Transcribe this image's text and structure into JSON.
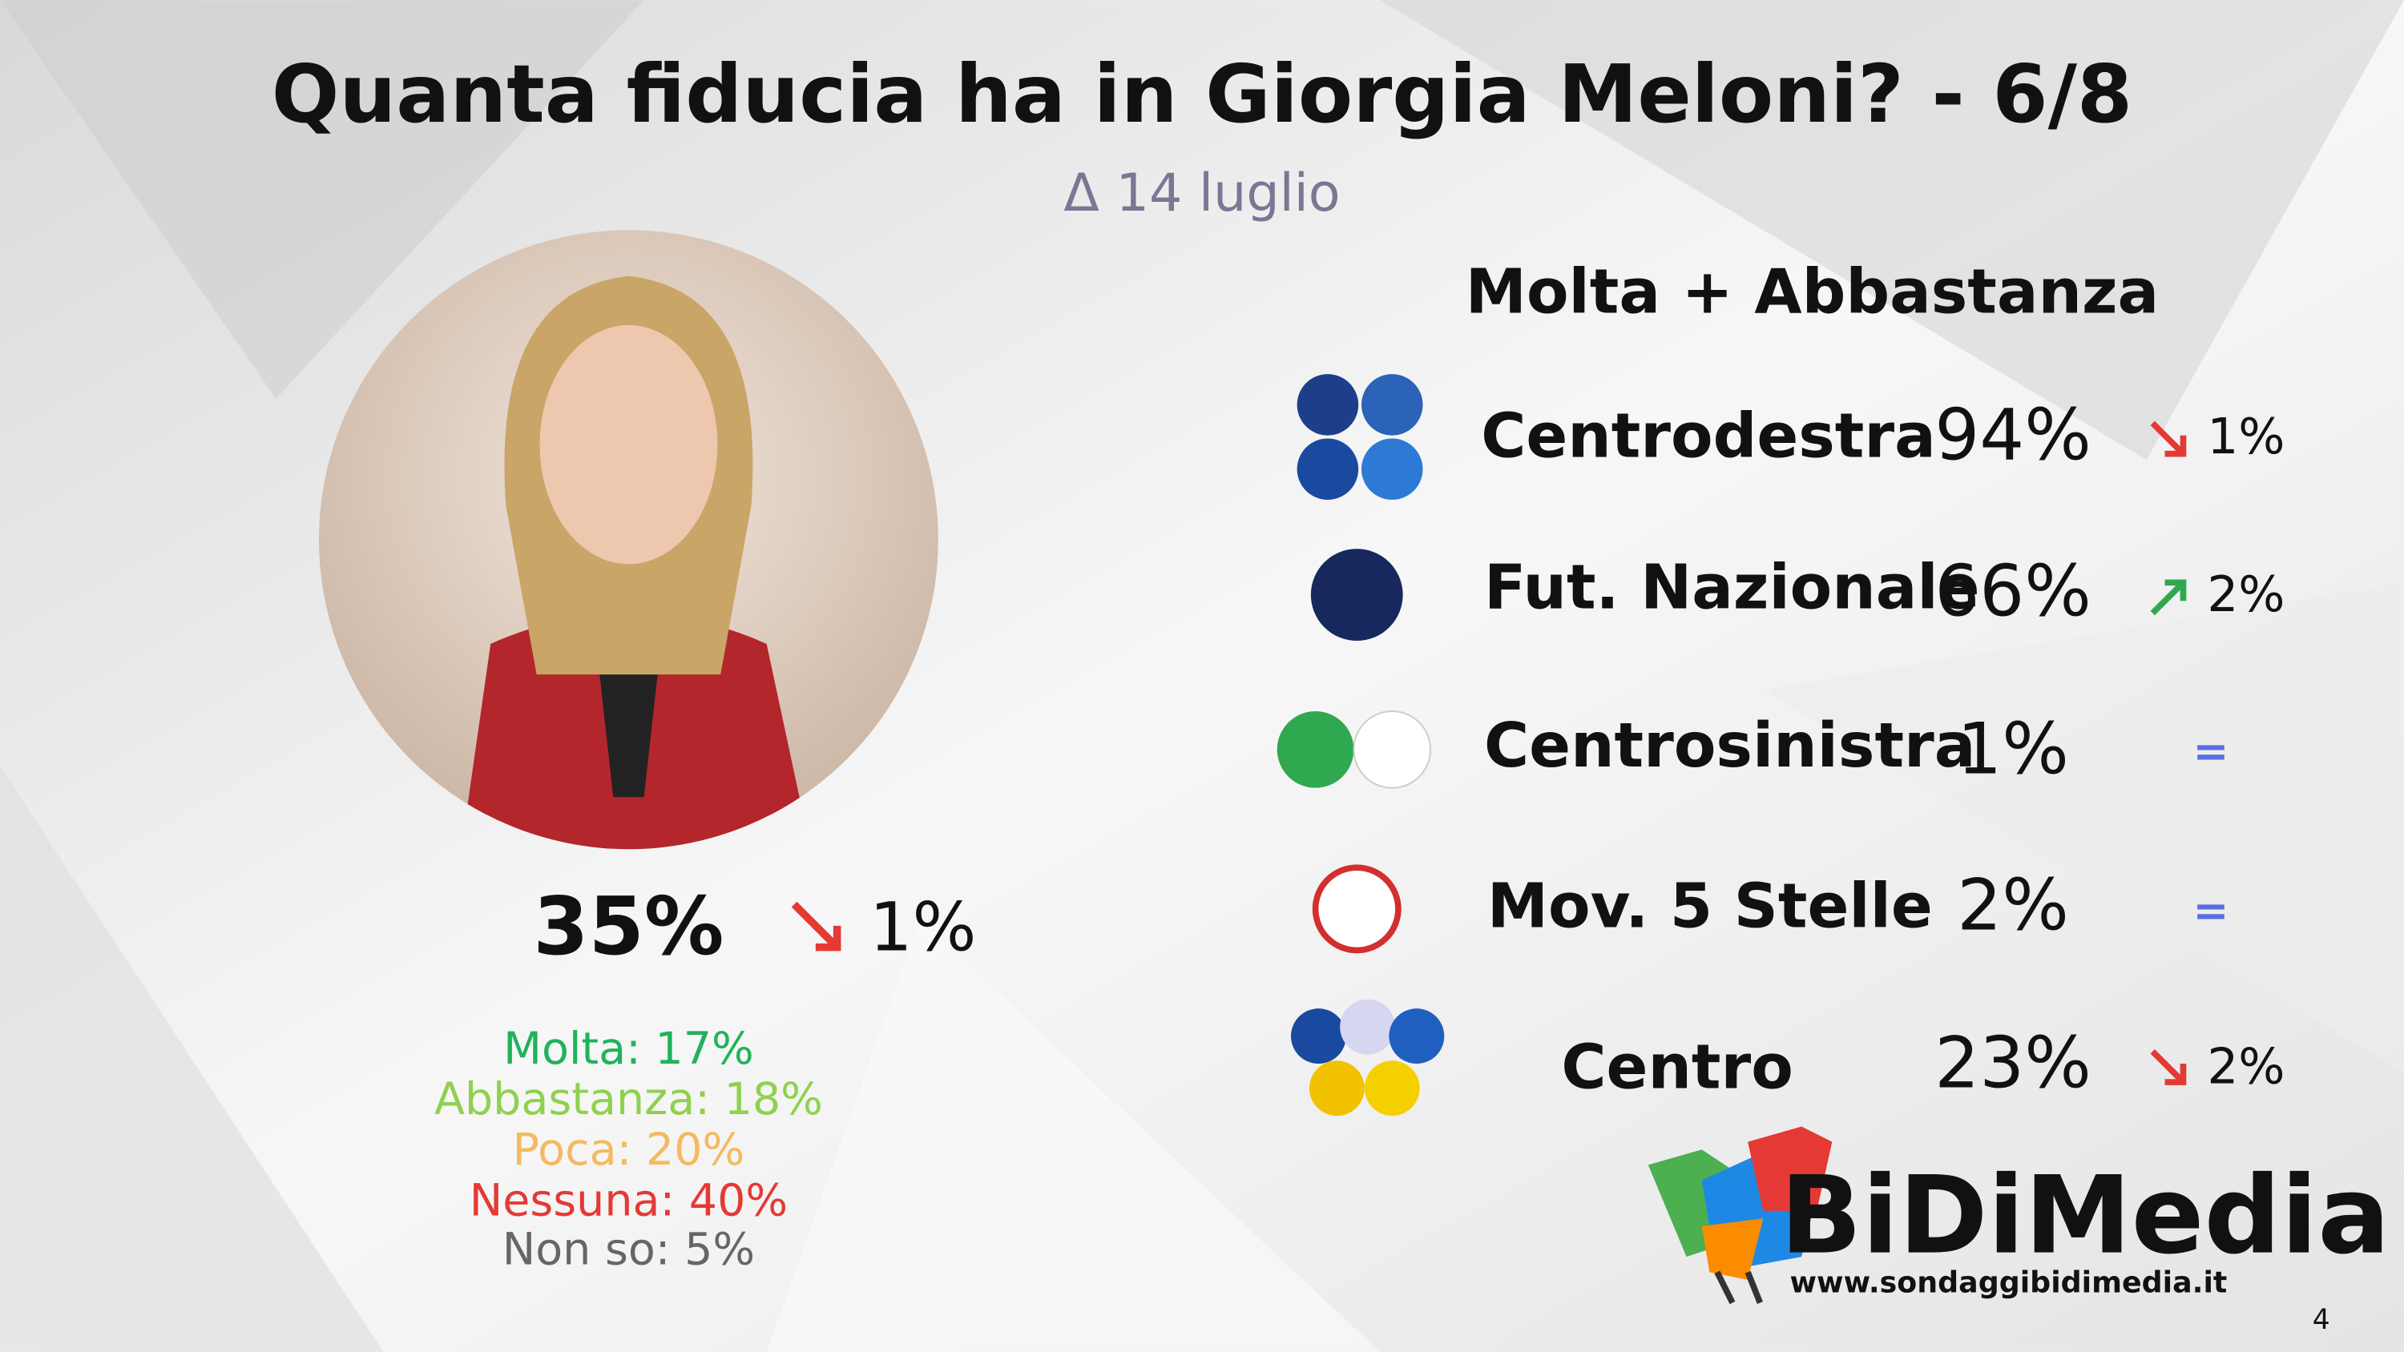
{
  "header": {
    "title": "Quanta fiducia ha in Giorgia Meloni? - 6/8",
    "subtitle": "Δ 14 luglio"
  },
  "overall": {
    "value": "35%",
    "change": "1%",
    "breakdown": [
      "Molta: 17%",
      "Abbastanza: 18%",
      "Poca: 20%",
      "Nessuna: 40%",
      "Non so: 5%"
    ]
  },
  "section": {
    "title": "Molta + Abbastanza",
    "rows": [
      {
        "name": "Centrodestra",
        "value": "94%",
        "change": "1%"
      },
      {
        "name": "Fut. Nazionale",
        "value": "66%",
        "change": "2%"
      },
      {
        "name": "Centrosinistra",
        "value": "1%",
        "change": "="
      },
      {
        "name": "Mov. 5 Stelle",
        "value": "2%",
        "change": "="
      },
      {
        "name": "Centro",
        "value": "23%",
        "change": "2%"
      }
    ]
  },
  "footer": {
    "brand": "BiDiMedia",
    "url": "www.sondaggibidimedia.it",
    "page": "4"
  }
}
